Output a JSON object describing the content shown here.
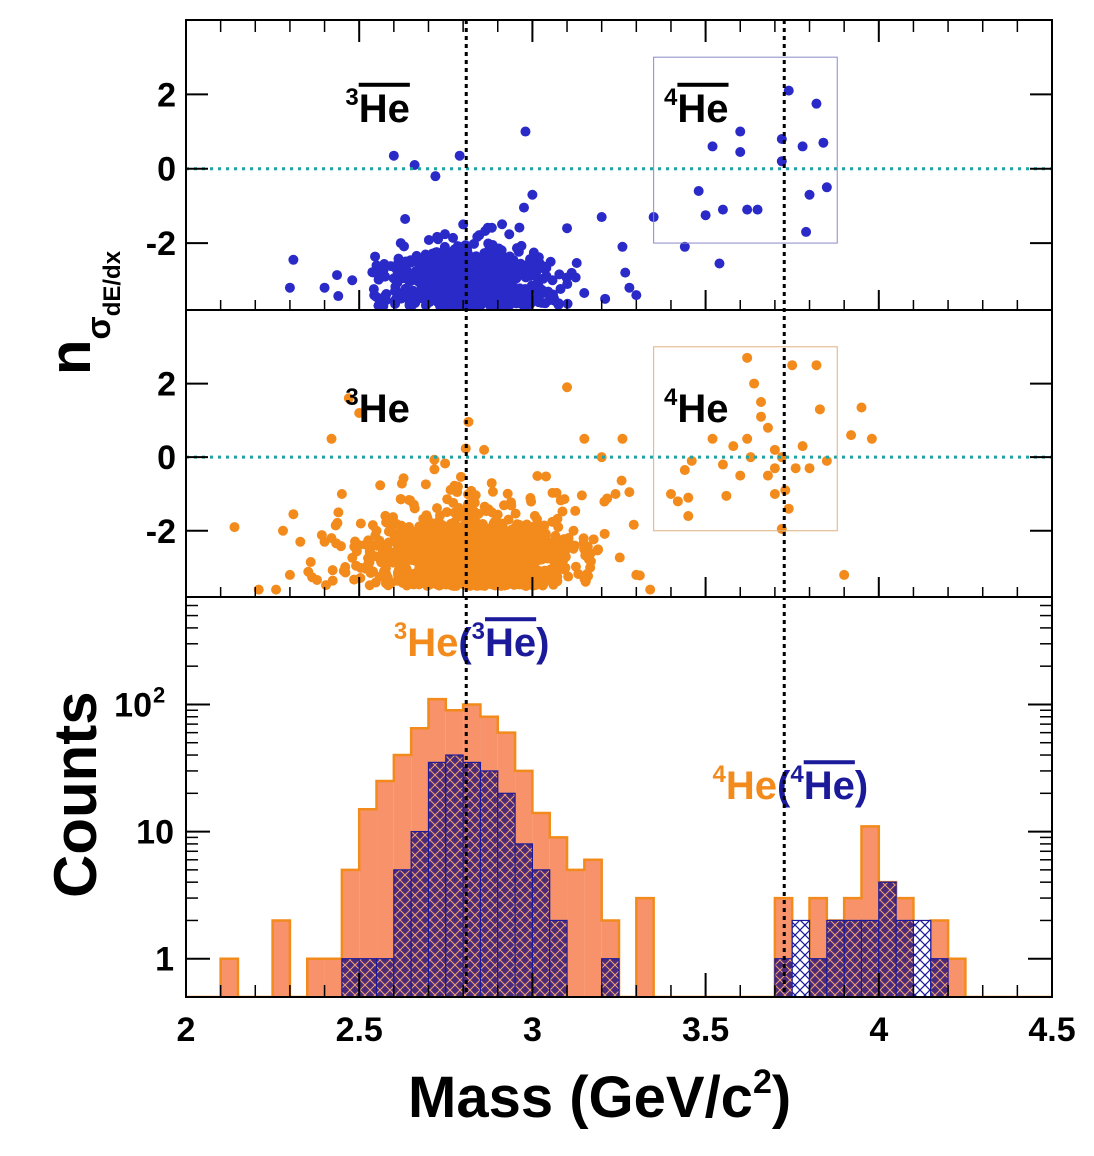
{
  "colors": {
    "antimatter": "#2a2ac8",
    "matter": "#f28a1c",
    "matter_fill": "#f7926a",
    "antimatter_hatch": "#1a1a9a",
    "reference_line": "#1fa3a3",
    "mass_marker": "#000000",
    "box_top": "#8a8ac8",
    "box_mid": "#e0b080"
  },
  "chart_data": [
    {
      "type": "scatter",
      "panel": "top",
      "ylabel": "n_{σ_{dE/dx}}",
      "ylabel_main": "n",
      "ylabel_sub1": "σ",
      "ylabel_sub2": "dE/dx",
      "xlim": [
        2,
        4.5
      ],
      "ylim": [
        -3.8,
        4.0
      ],
      "yticks": [
        "2",
        "0",
        "-2"
      ],
      "ytick_values": [
        2,
        0,
        -2
      ],
      "reference_y": 0,
      "selection_box": {
        "x": [
          3.35,
          3.88
        ],
        "y": [
          -2,
          3.0
        ]
      },
      "annotations": [
        {
          "sup": "3",
          "text": "He",
          "overline": true,
          "x": 2.46,
          "y": 1.8
        },
        {
          "sup": "4",
          "text": "He",
          "overline": true,
          "x": 3.38,
          "y": 1.8
        }
      ],
      "series": [
        {
          "color": "antimatter",
          "core_center": [
            2.82,
            -3.0
          ],
          "core_spread": [
            0.12,
            0.55
          ],
          "core_count": 700,
          "seed": 11
        }
      ],
      "points": [
        [
          2.3,
          -3.2
        ],
        [
          2.4,
          -3.2
        ],
        [
          2.31,
          -2.45
        ],
        [
          2.48,
          -3.0
        ],
        [
          2.55,
          -2.6
        ],
        [
          2.62,
          -2.0
        ],
        [
          2.6,
          0.35
        ],
        [
          2.66,
          0.1
        ],
        [
          2.72,
          -0.2
        ],
        [
          2.79,
          0.35
        ],
        [
          2.98,
          1.0
        ],
        [
          3.0,
          -0.7
        ],
        [
          3.1,
          -1.6
        ],
        [
          3.2,
          -1.3
        ],
        [
          3.21,
          -3.5
        ],
        [
          3.28,
          -3.2
        ],
        [
          3.3,
          -3.4
        ],
        [
          3.26,
          -2.1
        ],
        [
          3.35,
          -1.3
        ],
        [
          3.44,
          -2.1
        ],
        [
          3.48,
          -0.6
        ],
        [
          3.5,
          -1.25
        ],
        [
          3.52,
          0.6
        ],
        [
          3.55,
          -1.1
        ],
        [
          3.54,
          -2.55
        ],
        [
          3.6,
          0.45
        ],
        [
          3.62,
          -1.1
        ],
        [
          3.65,
          -1.1
        ],
        [
          3.6,
          1.0
        ],
        [
          3.72,
          0.8
        ],
        [
          3.72,
          0.2
        ],
        [
          3.74,
          2.1
        ],
        [
          3.78,
          0.6
        ],
        [
          3.82,
          1.75
        ],
        [
          3.84,
          0.7
        ],
        [
          3.8,
          -0.7
        ],
        [
          3.79,
          -1.7
        ],
        [
          3.85,
          -0.5
        ]
      ]
    },
    {
      "type": "scatter",
      "panel": "middle",
      "xlim": [
        2,
        4.5
      ],
      "ylim": [
        -3.8,
        4.0
      ],
      "yticks": [
        "2",
        "0",
        "-2"
      ],
      "ytick_values": [
        2,
        0,
        -2
      ],
      "reference_y": 0,
      "selection_box": {
        "x": [
          3.35,
          3.88
        ],
        "y": [
          -2,
          3.0
        ]
      },
      "annotations": [
        {
          "sup": "3",
          "text": "He",
          "overline": false,
          "x": 2.46,
          "y": 1.5
        },
        {
          "sup": "4",
          "text": "He",
          "overline": false,
          "x": 3.38,
          "y": 1.5
        }
      ],
      "series": [
        {
          "color": "matter",
          "core_center": [
            2.84,
            -2.8
          ],
          "core_spread": [
            0.15,
            0.75
          ],
          "core_count": 1200,
          "seed": 23
        }
      ],
      "points": [
        [
          2.14,
          -1.9
        ],
        [
          2.21,
          -3.6
        ],
        [
          2.26,
          -3.6
        ],
        [
          2.3,
          -3.2
        ],
        [
          2.28,
          -2.0
        ],
        [
          2.31,
          -1.55
        ],
        [
          2.33,
          -2.3
        ],
        [
          2.36,
          -2.85
        ],
        [
          2.4,
          -2.3
        ],
        [
          2.42,
          -2.2
        ],
        [
          2.44,
          -1.5
        ],
        [
          2.45,
          -1.0
        ],
        [
          2.47,
          1.6
        ],
        [
          2.5,
          1.2
        ],
        [
          2.42,
          0.5
        ],
        [
          2.55,
          -2.0
        ],
        [
          3.1,
          1.9
        ],
        [
          3.15,
          0.5
        ],
        [
          3.2,
          0.0
        ],
        [
          3.24,
          -1.0
        ],
        [
          3.26,
          0.5
        ],
        [
          3.28,
          -0.95
        ],
        [
          3.3,
          -3.2
        ],
        [
          3.34,
          -3.6
        ],
        [
          3.4,
          -1.0
        ],
        [
          3.42,
          -1.2
        ],
        [
          3.45,
          -1.1
        ],
        [
          3.45,
          -1.6
        ],
        [
          3.44,
          -0.35
        ],
        [
          3.55,
          -0.2
        ],
        [
          3.56,
          -1.05
        ],
        [
          3.58,
          0.3
        ],
        [
          3.6,
          -0.5
        ],
        [
          3.62,
          0.5
        ],
        [
          3.63,
          0.0
        ],
        [
          3.64,
          2.0
        ],
        [
          3.66,
          1.5
        ],
        [
          3.66,
          1.1
        ],
        [
          3.68,
          -0.5
        ],
        [
          3.68,
          0.8
        ],
        [
          3.7,
          -0.3
        ],
        [
          3.7,
          -1.0
        ],
        [
          3.7,
          0.2
        ],
        [
          3.72,
          0.0
        ],
        [
          3.74,
          -1.4
        ],
        [
          3.75,
          2.5
        ],
        [
          3.76,
          -0.3
        ],
        [
          3.78,
          0.3
        ],
        [
          3.8,
          -0.3
        ],
        [
          3.82,
          2.5
        ],
        [
          3.83,
          1.3
        ],
        [
          3.85,
          -0.1
        ],
        [
          3.9,
          -3.2
        ],
        [
          3.92,
          0.6
        ],
        [
          3.95,
          1.35
        ],
        [
          3.98,
          0.5
        ],
        [
          3.62,
          2.7
        ],
        [
          3.72,
          -1.95
        ],
        [
          3.73,
          -0.9
        ],
        [
          3.46,
          -0.1
        ],
        [
          3.52,
          0.5
        ]
      ]
    },
    {
      "type": "bar",
      "panel": "bottom",
      "xlabel": "Mass (GeV/c",
      "xlabel_sup": "2",
      "xlabel_close": ")",
      "ylabel": "Counts",
      "xlim": [
        2,
        4.5
      ],
      "ylim": [
        0.5,
        700
      ],
      "yscale": "log",
      "bin_start": 2.0,
      "bin_width": 0.05,
      "xticks": [
        "2",
        "2.5",
        "3",
        "3.5",
        "4",
        "4.5"
      ],
      "xtick_values": [
        2,
        2.5,
        3,
        3.5,
        4,
        4.5
      ],
      "ytick_values": [
        1,
        10,
        100
      ],
      "yticks": {
        "1": "1",
        "10": "10",
        "100_base": "10",
        "100_exp": "2"
      },
      "annotations": [
        {
          "matter_sup": "3",
          "matter_text": "He",
          "paren_open": "(",
          "anti_sup": "3",
          "anti_text": "He",
          "paren_close": ")",
          "x": 2.6,
          "y": 320
        },
        {
          "matter_sup": "4",
          "matter_text": "He",
          "paren_open": "(",
          "anti_sup": "4",
          "anti_text": "He",
          "paren_close": ")",
          "x": 3.52,
          "y": 24
        }
      ],
      "series": [
        {
          "color": "matter_fill",
          "values": [
            0,
            0,
            1,
            0,
            0,
            2,
            0,
            1,
            1,
            5,
            15,
            25,
            40,
            65,
            110,
            90,
            100,
            80,
            60,
            30,
            14,
            9,
            5,
            6,
            2,
            0,
            3,
            0,
            0,
            0,
            0,
            0,
            0,
            0,
            3,
            0,
            3,
            2,
            3,
            11,
            4,
            3,
            0,
            2,
            1,
            0,
            0,
            0,
            0,
            0
          ]
        },
        {
          "color": "antimatter_hatch",
          "values": [
            0,
            0,
            0,
            0,
            0,
            0,
            0,
            0,
            0,
            1,
            1,
            1,
            5,
            10,
            35,
            40,
            35,
            30,
            20,
            8,
            5,
            2,
            0,
            0,
            1,
            0,
            0,
            0,
            0,
            0,
            0,
            0,
            0,
            0,
            1,
            2,
            1,
            2,
            2,
            2,
            4,
            2,
            2,
            1,
            0,
            0,
            0,
            0,
            0,
            0
          ]
        }
      ]
    }
  ],
  "mass_markers": [
    2.809,
    3.727
  ]
}
